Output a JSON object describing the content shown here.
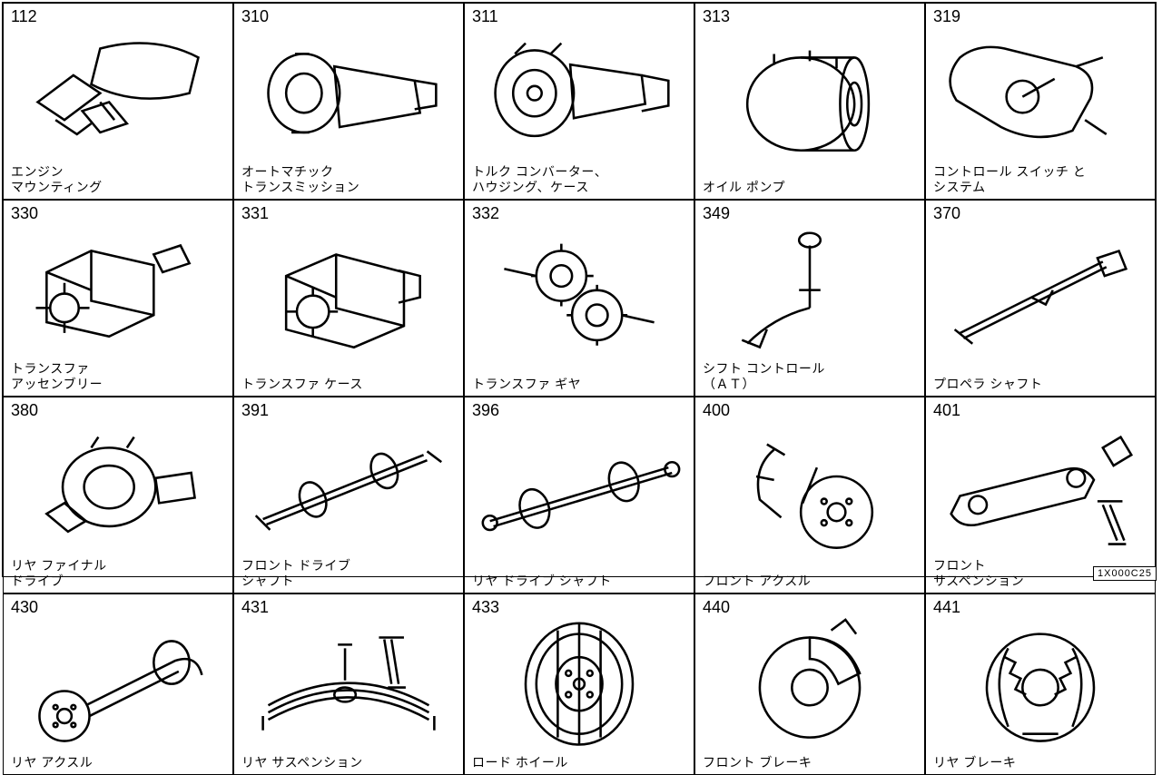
{
  "grid": {
    "cols": 5,
    "rows": 4,
    "border_color": "#000000",
    "bg_color": "#ffffff"
  },
  "ref_code": "1X000C25",
  "parts": [
    {
      "number": "112",
      "label": "エンジン\nマウンティング",
      "icon": "engine-mount"
    },
    {
      "number": "310",
      "label": "オートマチック\nトランスミッション",
      "icon": "auto-trans"
    },
    {
      "number": "311",
      "label": "トルク コンバーター、\nハウジング、ケース",
      "icon": "torque-conv"
    },
    {
      "number": "313",
      "label": "オイル ポンプ",
      "icon": "oil-pump"
    },
    {
      "number": "319",
      "label": "コントロール スイッチ と\nシステム",
      "icon": "control-switch"
    },
    {
      "number": "330",
      "label": "トランスファ\nアッセンブリー",
      "icon": "transfer-assy"
    },
    {
      "number": "331",
      "label": "トランスファ ケース",
      "icon": "transfer-case"
    },
    {
      "number": "332",
      "label": "トランスファ ギヤ",
      "icon": "transfer-gear"
    },
    {
      "number": "349",
      "label": "シフト コントロール\n（ＡＴ）",
      "icon": "shift-control"
    },
    {
      "number": "370",
      "label": "プロペラ シャフト",
      "icon": "prop-shaft"
    },
    {
      "number": "380",
      "label": "リヤ ファイナル\nドライブ",
      "icon": "rear-final"
    },
    {
      "number": "391",
      "label": "フロント ドライブ\nシャフト",
      "icon": "front-drive-shaft"
    },
    {
      "number": "396",
      "label": "リヤ ドライブ シャフト",
      "icon": "rear-drive-shaft"
    },
    {
      "number": "400",
      "label": "フロント アクスル",
      "icon": "front-axle"
    },
    {
      "number": "401",
      "label": "フロント\nサスペンション",
      "icon": "front-susp"
    },
    {
      "number": "430",
      "label": "リヤ アクスル",
      "icon": "rear-axle"
    },
    {
      "number": "431",
      "label": "リヤ サスペンション",
      "icon": "rear-susp"
    },
    {
      "number": "433",
      "label": "ロード ホイール",
      "icon": "road-wheel"
    },
    {
      "number": "440",
      "label": "フロント ブレーキ",
      "icon": "front-brake"
    },
    {
      "number": "441",
      "label": "リヤ ブレーキ",
      "icon": "rear-brake"
    }
  ],
  "style": {
    "number_fontsize": 18,
    "label_fontsize": 14,
    "stroke": "#000000",
    "stroke_width": 1.2
  }
}
